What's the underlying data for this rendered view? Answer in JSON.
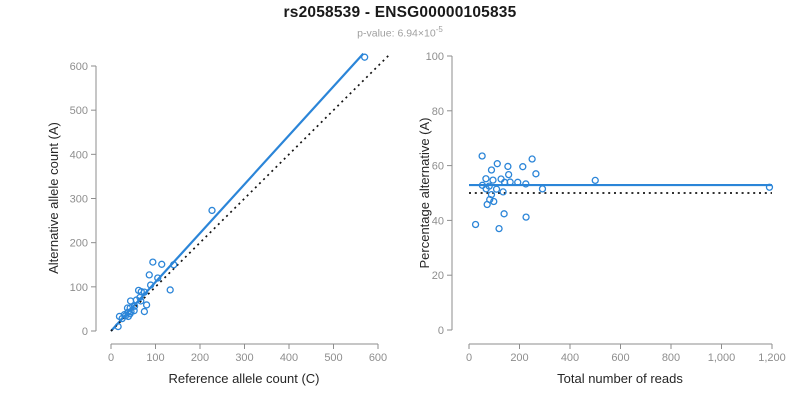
{
  "header": {
    "title": "rs2058539 - ENSG00000105835",
    "pvalue_text": "p-value: 6.94×10",
    "pvalue_exponent": "-5"
  },
  "colors": {
    "accent_blue": "#2b85d8",
    "dotted_black": "#141414",
    "axis_gray": "#8e8e8e",
    "tick_label_gray": "#8e8e8e",
    "title_black": "#1a1a1a",
    "subtitle_gray": "#a0a0a0",
    "axis_title_color": "#262626",
    "background": "#ffffff"
  },
  "chart_data": [
    {
      "type": "scatter",
      "title": "",
      "xlabel": "Reference allele count (C)",
      "ylabel": "Alternative allele count (A)",
      "xlim": [
        0,
        600
      ],
      "ylim": [
        0,
        600
      ],
      "grid": false,
      "legend_position": "none",
      "xticks": [
        0,
        100,
        200,
        300,
        400,
        500,
        600
      ],
      "xtick_labels": [
        "0",
        "100",
        "200",
        "300",
        "400",
        "500",
        "600"
      ],
      "yticks": [
        0,
        100,
        200,
        300,
        400,
        500,
        600
      ],
      "ytick_labels": [
        "0",
        "100",
        "200",
        "300",
        "400",
        "500",
        "600"
      ],
      "points": {
        "marker": "open-circle",
        "x": [
          19,
          44,
          62,
          94,
          86,
          37,
          68,
          114,
          30,
          43,
          65,
          75,
          89,
          38,
          53,
          67,
          45,
          141,
          43,
          52,
          39,
          80,
          133,
          16,
          75,
          227,
          570,
          33,
          57,
          25,
          105
        ],
        "y": [
          33,
          68,
          92,
          156,
          127,
          52,
          89,
          151,
          37,
          52,
          76,
          88,
          104,
          42,
          56,
          68,
          44,
          150,
          39,
          46,
          33,
          59,
          93,
          10,
          44,
          273,
          620,
          35,
          70,
          28,
          120
        ]
      },
      "lines": [
        {
          "name": "fit-line",
          "style": "solid",
          "x": [
            0,
            567
          ],
          "y": [
            0,
            628
          ]
        },
        {
          "name": "identity-line",
          "style": "dotted",
          "x": [
            0,
            628
          ],
          "y": [
            0,
            628
          ]
        }
      ]
    },
    {
      "type": "scatter",
      "title": "",
      "xlabel": "Total number of reads",
      "ylabel": "Percentage alternative (A)",
      "xlim": [
        0,
        1200
      ],
      "ylim": [
        0,
        100
      ],
      "grid": false,
      "legend_position": "none",
      "xticks": [
        0,
        200,
        400,
        600,
        800,
        1000,
        1200
      ],
      "xtick_labels": [
        "0",
        "200",
        "400",
        "600",
        "800",
        "1,000",
        "1,200"
      ],
      "yticks": [
        0,
        20,
        40,
        60,
        80,
        100
      ],
      "ytick_labels": [
        "0",
        "20",
        "40",
        "60",
        "80",
        "100"
      ],
      "points": {
        "marker": "open-circle",
        "x": [
          52,
          112,
          154,
          250,
          213,
          89,
          157,
          265,
          67,
          95,
          141,
          163,
          193,
          80,
          109,
          135,
          89,
          291,
          82,
          98,
          72,
          139,
          226,
          26,
          119,
          500,
          1190,
          68,
          127,
          53,
          225
        ],
        "y": [
          63.5,
          60.7,
          59.7,
          62.4,
          59.6,
          58.4,
          56.7,
          57.0,
          55.2,
          54.7,
          53.9,
          54.0,
          53.9,
          52.5,
          51.4,
          50.4,
          49.4,
          51.5,
          47.6,
          46.9,
          45.8,
          42.4,
          41.2,
          38.5,
          37.0,
          54.6,
          52.1,
          51.5,
          55.1,
          52.8,
          53.3
        ]
      },
      "lines": [
        {
          "name": "fit-line",
          "style": "solid",
          "x": [
            0,
            1200
          ],
          "y": [
            52.9,
            52.9
          ]
        },
        {
          "name": "reference-line",
          "style": "dotted",
          "x": [
            0,
            1200
          ],
          "y": [
            50,
            50
          ]
        }
      ]
    }
  ]
}
